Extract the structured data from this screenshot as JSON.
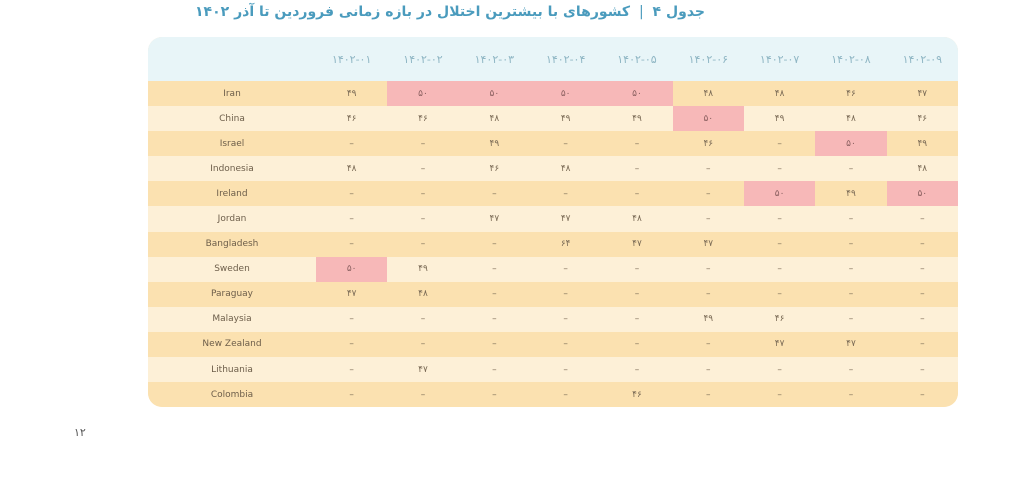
{
  "title": {
    "prefix": "جدول ۴",
    "separator": "|",
    "text": "کشورهای با بیشترین اختلال در بازه زمانی فروردین تا آذر ۱۴۰۲"
  },
  "table": {
    "columns": [
      "۱۴۰۲-۰۱",
      "۱۴۰۲-۰۲",
      "۱۴۰۲-۰۳",
      "۱۴۰۲-۰۴",
      "۱۴۰۲-۰۵",
      "۱۴۰۲-۰۶",
      "۱۴۰۲-۰۷",
      "۱۴۰۲-۰۸",
      "۱۴۰۲-۰۹"
    ],
    "rows": [
      {
        "country": "Iran",
        "cells": [
          "۴۹",
          "۵۰",
          "۵۰",
          "۵۰",
          "۵۰",
          "۴۸",
          "۴۸",
          "۴۶",
          "۴۷"
        ],
        "highlight": [
          1,
          2,
          3,
          4
        ]
      },
      {
        "country": "China",
        "cells": [
          "۴۶",
          "۴۶",
          "۴۸",
          "۴۹",
          "۴۹",
          "۵۰",
          "۴۹",
          "۴۸",
          "۴۶"
        ],
        "highlight": [
          5
        ]
      },
      {
        "country": "Israel",
        "cells": [
          "–",
          "–",
          "۴۹",
          "–",
          "–",
          "۴۶",
          "–",
          "۵۰",
          "۴۹"
        ],
        "highlight": [
          7
        ]
      },
      {
        "country": "Indonesia",
        "cells": [
          "۴۸",
          "–",
          "۴۶",
          "۴۸",
          "–",
          "–",
          "–",
          "–",
          "۴۸"
        ],
        "highlight": []
      },
      {
        "country": "Ireland",
        "cells": [
          "–",
          "–",
          "–",
          "–",
          "–",
          "–",
          "۵۰",
          "۴۹",
          "۵۰"
        ],
        "highlight": [
          6,
          8
        ]
      },
      {
        "country": "Jordan",
        "cells": [
          "–",
          "–",
          "۴۷",
          "۴۷",
          "۴۸",
          "–",
          "–",
          "–",
          "–"
        ],
        "highlight": []
      },
      {
        "country": "Bangladesh",
        "cells": [
          "–",
          "–",
          "–",
          "۶۴",
          "۴۷",
          "۴۷",
          "–",
          "–",
          "–"
        ],
        "highlight": []
      },
      {
        "country": "Sweden",
        "cells": [
          "۵۰",
          "۴۹",
          "–",
          "–",
          "–",
          "–",
          "–",
          "–",
          "–"
        ],
        "highlight": [
          0
        ]
      },
      {
        "country": "Paraguay",
        "cells": [
          "۴۷",
          "۴۸",
          "–",
          "–",
          "–",
          "–",
          "–",
          "–",
          "–"
        ],
        "highlight": []
      },
      {
        "country": "Malaysia",
        "cells": [
          "–",
          "–",
          "–",
          "–",
          "–",
          "۴۹",
          "۴۶",
          "–",
          "–"
        ],
        "highlight": []
      },
      {
        "country": "New Zealand",
        "cells": [
          "–",
          "–",
          "–",
          "–",
          "–",
          "–",
          "۴۷",
          "۴۷",
          "–"
        ],
        "highlight": []
      },
      {
        "country": "Lithuania",
        "cells": [
          "–",
          "۴۷",
          "–",
          "–",
          "–",
          "–",
          "–",
          "–",
          "–"
        ],
        "highlight": []
      },
      {
        "country": "Colombia",
        "cells": [
          "–",
          "–",
          "–",
          "–",
          "۴۶",
          "–",
          "–",
          "–",
          "–"
        ],
        "highlight": []
      }
    ]
  },
  "colors": {
    "highlight": "#f7b8b8",
    "row_odd": "#fbe1b0",
    "row_even": "#fdf0d7",
    "header_bg": "#e8f5f8",
    "title": "#4a9bbd"
  },
  "page_number": "۱۲"
}
